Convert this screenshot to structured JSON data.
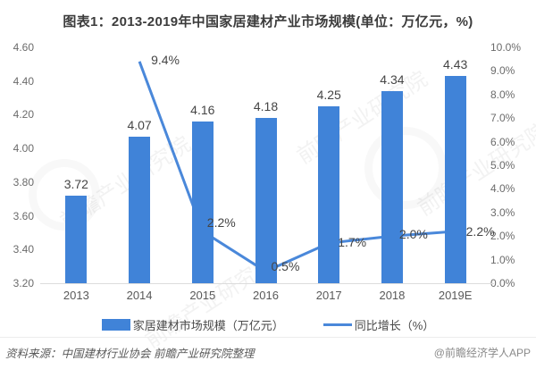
{
  "title": "图表1：2013-2019年中国家居建材产业市场规模(单位：万亿元，%)",
  "chart_data": {
    "type": "bar",
    "categories": [
      "2013",
      "2014",
      "2015",
      "2016",
      "2017",
      "2018",
      "2019E"
    ],
    "series": [
      {
        "name": "家居建材市场规模（万亿元）",
        "type": "bar",
        "axis": "left",
        "values": [
          3.72,
          4.07,
          4.16,
          4.18,
          4.25,
          4.34,
          4.43
        ],
        "labels": [
          "3.72",
          "4.07",
          "4.16",
          "4.18",
          "4.25",
          "4.34",
          "4.43"
        ]
      },
      {
        "name": "同比增长（%）",
        "type": "line",
        "axis": "right",
        "values": [
          null,
          9.4,
          2.2,
          0.5,
          1.7,
          2.0,
          2.2
        ],
        "labels": [
          null,
          "9.4%",
          "2.2%",
          "0.5%",
          "1.7%",
          "2.0%",
          "2.2%"
        ]
      }
    ],
    "left_axis": {
      "min": 3.2,
      "max": 4.6,
      "step": 0.2,
      "tick_labels": [
        "4.60",
        "4.40",
        "4.20",
        "4.00",
        "3.80",
        "3.60",
        "3.40",
        "3.20"
      ]
    },
    "right_axis": {
      "min": 0,
      "max": 10,
      "step": 1,
      "tick_labels": [
        "10.0%",
        "9.0%",
        "8.0%",
        "7.0%",
        "6.0%",
        "5.0%",
        "4.0%",
        "3.0%",
        "2.0%",
        "1.0%",
        "0.0%"
      ]
    },
    "grid": false,
    "legend_position": "bottom"
  },
  "colors": {
    "bar": "#4083d8",
    "line": "#4a88da",
    "title": "#3c3c3c",
    "axis_label": "#6b6b6b",
    "data_label": "#454545",
    "axis_line": "#dcdcdc"
  },
  "legend": {
    "bar_label": "家居建材市场规模（万亿元）",
    "line_label": "同比增长（%）"
  },
  "footer": {
    "source": "资料来源：中国建材行业协会 前瞻产业研究院整理",
    "credit": "@前瞻经济学人APP"
  },
  "watermark": {
    "text": "前瞻产业研究院"
  }
}
